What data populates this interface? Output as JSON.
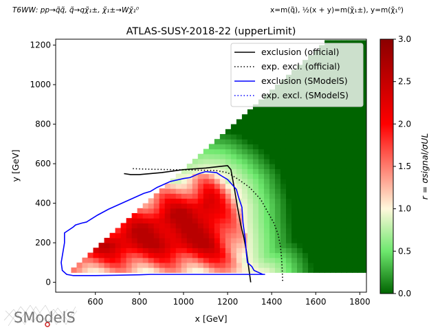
{
  "chart_data": {
    "type": "heatmap",
    "header_left": "T6WW: pp→q̃q̃, q̃→qχ̃₁±, χ̃₁±→Wχ̃₁⁰",
    "header_right": "x=m(q̃), ½(x + y)=m(χ̃₁±), y=m(χ̃₁⁰)",
    "title": "ATLAS-SUSY-2018-22 (upperLimit)",
    "xlabel": "x [GeV]",
    "ylabel": "y [GeV]",
    "colorbar_label": "r = σsignal/σUL",
    "xlim": [
      420,
      1830
    ],
    "ylim": [
      -50,
      1230
    ],
    "clim": [
      0,
      3
    ],
    "xticks": [
      600,
      800,
      1000,
      1200,
      1400,
      1600,
      1800
    ],
    "yticks": [
      0,
      200,
      400,
      600,
      800,
      1000,
      1200
    ],
    "cticks": [
      0.0,
      0.5,
      1.0,
      1.5,
      2.0,
      2.5,
      3.0
    ],
    "colormap": [
      {
        "v": 0.0,
        "color": "#006400"
      },
      {
        "v": 0.5,
        "color": "#6ee86e"
      },
      {
        "v": 1.0,
        "color": "#fff8dc"
      },
      {
        "v": 2.0,
        "color": "#ff0000"
      },
      {
        "v": 3.0,
        "color": "#8b0000"
      }
    ],
    "legend_position": "top-right",
    "series": [
      {
        "name": "exclusion (official)",
        "color": "#000000",
        "style": "solid",
        "x": [
          730,
          760,
          800,
          900,
          1000,
          1100,
          1180,
          1200,
          1215,
          1230,
          1245,
          1260,
          1275,
          1285,
          1295,
          1305
        ],
        "y": [
          550,
          545,
          545,
          555,
          570,
          578,
          588,
          590,
          570,
          480,
          380,
          290,
          220,
          160,
          80,
          0
        ]
      },
      {
        "name": "exp. excl. (official)",
        "color": "#000000",
        "style": "dotted",
        "x": [
          770,
          850,
          950,
          1050,
          1150,
          1200,
          1250,
          1300,
          1350,
          1380,
          1410,
          1430,
          1440,
          1445,
          1448,
          1450
        ],
        "y": [
          575,
          572,
          570,
          568,
          565,
          555,
          520,
          480,
          420,
          360,
          300,
          240,
          180,
          120,
          60,
          0
        ]
      },
      {
        "name": "exclusion (SModelS)",
        "color": "#0000ff",
        "style": "solid",
        "x": [
          460,
          460,
          500,
          510,
          540,
          560,
          610,
          660,
          700,
          740,
          780,
          800,
          820,
          850,
          880,
          900,
          940,
          980,
          1000,
          1030,
          1070,
          1100,
          1150,
          1170,
          1200,
          1240,
          1250,
          1265,
          1270,
          1280,
          1285,
          1290,
          1310,
          1320,
          1350,
          1360,
          1370,
          1300,
          1200,
          1100,
          1000,
          900,
          850,
          800,
          700,
          600,
          500,
          470,
          450,
          445,
          460
        ],
        "y": [
          200,
          250,
          280,
          290,
          300,
          305,
          340,
          370,
          390,
          410,
          430,
          440,
          450,
          460,
          480,
          490,
          510,
          520,
          525,
          530,
          550,
          560,
          555,
          540,
          520,
          470,
          430,
          380,
          300,
          220,
          150,
          100,
          80,
          60,
          45,
          40,
          40,
          40,
          40,
          40,
          40,
          40,
          40,
          38,
          36,
          34,
          34,
          40,
          60,
          100,
          200
        ]
      },
      {
        "name": "exp. excl. (SModelS)",
        "color": "#0000ff",
        "style": "dotted",
        "x": [],
        "y": []
      }
    ]
  },
  "logo": {
    "text": "SModelS"
  }
}
